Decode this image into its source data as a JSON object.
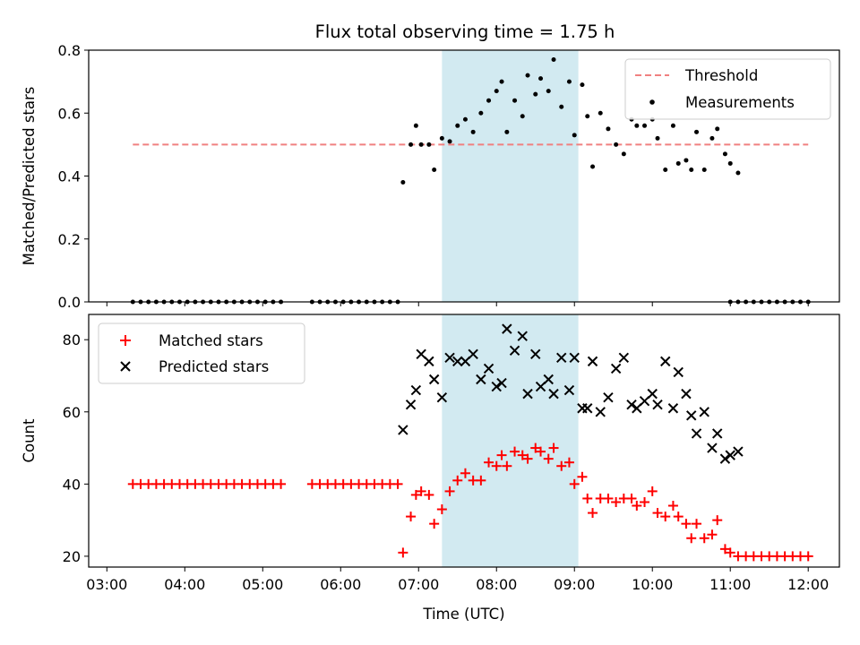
{
  "chart_data": {
    "title": "Flux total observing time = 1.75 h",
    "xlabel": "Time (UTC)",
    "x_ticks": [
      "03:00",
      "04:00",
      "05:00",
      "06:00",
      "07:00",
      "08:00",
      "09:00",
      "10:00",
      "11:00",
      "12:00"
    ],
    "shaded_interval": [
      "07:18",
      "09:03"
    ],
    "shaded_color": "#add8e6",
    "panels": [
      {
        "type": "scatter",
        "ylabel": "Matched/Predicted stars",
        "ylim": [
          0,
          0.8
        ],
        "y_ticks": [
          "0.0",
          "0.2",
          "0.4",
          "0.6",
          "0.8"
        ],
        "legend_position": "top-right",
        "threshold": {
          "name": "Threshold",
          "value": 0.5,
          "x_range": [
            "03:20",
            "12:00"
          ],
          "color": "#f08080",
          "style": "dashed"
        },
        "series": [
          {
            "name": "Measurements",
            "color": "#000000",
            "marker": "dot",
            "points": [
              [
                "03:20",
                0
              ],
              [
                "03:26",
                0
              ],
              [
                "03:32",
                0
              ],
              [
                "03:38",
                0
              ],
              [
                "03:44",
                0
              ],
              [
                "03:50",
                0
              ],
              [
                "03:56",
                0
              ],
              [
                "04:02",
                0
              ],
              [
                "04:08",
                0
              ],
              [
                "04:14",
                0
              ],
              [
                "04:20",
                0
              ],
              [
                "04:26",
                0
              ],
              [
                "04:32",
                0
              ],
              [
                "04:38",
                0
              ],
              [
                "04:44",
                0
              ],
              [
                "04:50",
                0
              ],
              [
                "04:56",
                0
              ],
              [
                "05:02",
                0
              ],
              [
                "05:08",
                0
              ],
              [
                "05:14",
                0
              ],
              [
                "05:38",
                0
              ],
              [
                "05:44",
                0
              ],
              [
                "05:50",
                0
              ],
              [
                "05:56",
                0
              ],
              [
                "06:02",
                0
              ],
              [
                "06:08",
                0
              ],
              [
                "06:14",
                0
              ],
              [
                "06:20",
                0
              ],
              [
                "06:26",
                0
              ],
              [
                "06:32",
                0
              ],
              [
                "06:38",
                0
              ],
              [
                "06:44",
                0
              ],
              [
                "06:48",
                0.38
              ],
              [
                "06:54",
                0.5
              ],
              [
                "06:58",
                0.56
              ],
              [
                "07:02",
                0.5
              ],
              [
                "07:08",
                0.5
              ],
              [
                "07:12",
                0.42
              ],
              [
                "07:18",
                0.52
              ],
              [
                "07:24",
                0.51
              ],
              [
                "07:30",
                0.56
              ],
              [
                "07:36",
                0.58
              ],
              [
                "07:42",
                0.54
              ],
              [
                "07:48",
                0.6
              ],
              [
                "07:54",
                0.64
              ],
              [
                "08:00",
                0.67
              ],
              [
                "08:04",
                0.7
              ],
              [
                "08:08",
                0.54
              ],
              [
                "08:14",
                0.64
              ],
              [
                "08:20",
                0.59
              ],
              [
                "08:24",
                0.72
              ],
              [
                "08:30",
                0.66
              ],
              [
                "08:34",
                0.71
              ],
              [
                "08:40",
                0.67
              ],
              [
                "08:44",
                0.77
              ],
              [
                "08:50",
                0.62
              ],
              [
                "08:56",
                0.7
              ],
              [
                "09:00",
                0.53
              ],
              [
                "09:06",
                0.69
              ],
              [
                "09:10",
                0.59
              ],
              [
                "09:14",
                0.43
              ],
              [
                "09:20",
                0.6
              ],
              [
                "09:26",
                0.55
              ],
              [
                "09:32",
                0.5
              ],
              [
                "09:38",
                0.47
              ],
              [
                "09:44",
                0.58
              ],
              [
                "09:48",
                0.56
              ],
              [
                "09:54",
                0.56
              ],
              [
                "10:00",
                0.58
              ],
              [
                "10:04",
                0.52
              ],
              [
                "10:10",
                0.42
              ],
              [
                "10:16",
                0.56
              ],
              [
                "10:20",
                0.44
              ],
              [
                "10:26",
                0.45
              ],
              [
                "10:30",
                0.42
              ],
              [
                "10:34",
                0.54
              ],
              [
                "10:40",
                0.42
              ],
              [
                "10:46",
                0.52
              ],
              [
                "10:50",
                0.55
              ],
              [
                "10:56",
                0.47
              ],
              [
                "11:00",
                0.44
              ],
              [
                "11:06",
                0.41
              ],
              [
                "11:00",
                0
              ],
              [
                "11:06",
                0
              ],
              [
                "11:12",
                0
              ],
              [
                "11:18",
                0
              ],
              [
                "11:24",
                0
              ],
              [
                "11:30",
                0
              ],
              [
                "11:36",
                0
              ],
              [
                "11:42",
                0
              ],
              [
                "11:48",
                0
              ],
              [
                "11:54",
                0
              ],
              [
                "12:00",
                0
              ]
            ]
          }
        ]
      },
      {
        "type": "scatter",
        "ylabel": "Count",
        "ylim": [
          17,
          87
        ],
        "y_ticks": [
          "20",
          "40",
          "60",
          "80"
        ],
        "legend_position": "top-left",
        "series": [
          {
            "name": "Matched stars",
            "color": "#ff0000",
            "marker": "plus",
            "points": [
              [
                "03:20",
                40
              ],
              [
                "03:26",
                40
              ],
              [
                "03:32",
                40
              ],
              [
                "03:38",
                40
              ],
              [
                "03:44",
                40
              ],
              [
                "03:50",
                40
              ],
              [
                "03:56",
                40
              ],
              [
                "04:02",
                40
              ],
              [
                "04:08",
                40
              ],
              [
                "04:14",
                40
              ],
              [
                "04:20",
                40
              ],
              [
                "04:26",
                40
              ],
              [
                "04:32",
                40
              ],
              [
                "04:38",
                40
              ],
              [
                "04:44",
                40
              ],
              [
                "04:50",
                40
              ],
              [
                "04:56",
                40
              ],
              [
                "05:02",
                40
              ],
              [
                "05:08",
                40
              ],
              [
                "05:14",
                40
              ],
              [
                "05:38",
                40
              ],
              [
                "05:44",
                40
              ],
              [
                "05:50",
                40
              ],
              [
                "05:56",
                40
              ],
              [
                "06:02",
                40
              ],
              [
                "06:08",
                40
              ],
              [
                "06:14",
                40
              ],
              [
                "06:20",
                40
              ],
              [
                "06:26",
                40
              ],
              [
                "06:32",
                40
              ],
              [
                "06:38",
                40
              ],
              [
                "06:44",
                40
              ],
              [
                "06:48",
                21
              ],
              [
                "06:54",
                31
              ],
              [
                "06:58",
                37
              ],
              [
                "07:02",
                38
              ],
              [
                "07:08",
                37
              ],
              [
                "07:12",
                29
              ],
              [
                "07:18",
                33
              ],
              [
                "07:24",
                38
              ],
              [
                "07:30",
                41
              ],
              [
                "07:36",
                43
              ],
              [
                "07:42",
                41
              ],
              [
                "07:48",
                41
              ],
              [
                "07:54",
                46
              ],
              [
                "08:00",
                45
              ],
              [
                "08:04",
                48
              ],
              [
                "08:08",
                45
              ],
              [
                "08:14",
                49
              ],
              [
                "08:20",
                48
              ],
              [
                "08:24",
                47
              ],
              [
                "08:30",
                50
              ],
              [
                "08:34",
                49
              ],
              [
                "08:40",
                47
              ],
              [
                "08:44",
                50
              ],
              [
                "08:50",
                45
              ],
              [
                "08:56",
                46
              ],
              [
                "09:00",
                40
              ],
              [
                "09:06",
                42
              ],
              [
                "09:10",
                36
              ],
              [
                "09:14",
                32
              ],
              [
                "09:20",
                36
              ],
              [
                "09:26",
                36
              ],
              [
                "09:32",
                35
              ],
              [
                "09:38",
                36
              ],
              [
                "09:44",
                36
              ],
              [
                "09:48",
                34
              ],
              [
                "09:54",
                35
              ],
              [
                "10:00",
                38
              ],
              [
                "10:04",
                32
              ],
              [
                "10:10",
                31
              ],
              [
                "10:16",
                34
              ],
              [
                "10:20",
                31
              ],
              [
                "10:26",
                29
              ],
              [
                "10:30",
                25
              ],
              [
                "10:34",
                29
              ],
              [
                "10:40",
                25
              ],
              [
                "10:46",
                26
              ],
              [
                "10:50",
                30
              ],
              [
                "10:56",
                22
              ],
              [
                "11:00",
                21
              ],
              [
                "11:06",
                20
              ],
              [
                "11:12",
                20
              ],
              [
                "11:18",
                20
              ],
              [
                "11:24",
                20
              ],
              [
                "11:30",
                20
              ],
              [
                "11:36",
                20
              ],
              [
                "11:42",
                20
              ],
              [
                "11:48",
                20
              ],
              [
                "11:54",
                20
              ],
              [
                "12:00",
                20
              ]
            ]
          },
          {
            "name": "Predicted stars",
            "color": "#000000",
            "marker": "x",
            "points": [
              [
                "06:48",
                55
              ],
              [
                "06:54",
                62
              ],
              [
                "06:58",
                66
              ],
              [
                "07:02",
                76
              ],
              [
                "07:08",
                74
              ],
              [
                "07:12",
                69
              ],
              [
                "07:18",
                64
              ],
              [
                "07:24",
                75
              ],
              [
                "07:30",
                74
              ],
              [
                "07:36",
                74
              ],
              [
                "07:42",
                76
              ],
              [
                "07:48",
                69
              ],
              [
                "07:54",
                72
              ],
              [
                "08:00",
                67
              ],
              [
                "08:04",
                68
              ],
              [
                "08:08",
                83
              ],
              [
                "08:14",
                77
              ],
              [
                "08:20",
                81
              ],
              [
                "08:24",
                65
              ],
              [
                "08:30",
                76
              ],
              [
                "08:34",
                67
              ],
              [
                "08:40",
                69
              ],
              [
                "08:44",
                65
              ],
              [
                "08:50",
                75
              ],
              [
                "08:56",
                66
              ],
              [
                "09:00",
                75
              ],
              [
                "09:06",
                61
              ],
              [
                "09:10",
                61
              ],
              [
                "09:14",
                74
              ],
              [
                "09:20",
                60
              ],
              [
                "09:26",
                64
              ],
              [
                "09:32",
                72
              ],
              [
                "09:38",
                75
              ],
              [
                "09:44",
                62
              ],
              [
                "09:48",
                61
              ],
              [
                "09:54",
                63
              ],
              [
                "10:00",
                65
              ],
              [
                "10:04",
                62
              ],
              [
                "10:10",
                74
              ],
              [
                "10:16",
                61
              ],
              [
                "10:20",
                71
              ],
              [
                "10:26",
                65
              ],
              [
                "10:30",
                59
              ],
              [
                "10:34",
                54
              ],
              [
                "10:40",
                60
              ],
              [
                "10:46",
                50
              ],
              [
                "10:50",
                54
              ],
              [
                "10:56",
                47
              ],
              [
                "11:00",
                48
              ],
              [
                "11:06",
                49
              ]
            ]
          }
        ]
      }
    ]
  }
}
